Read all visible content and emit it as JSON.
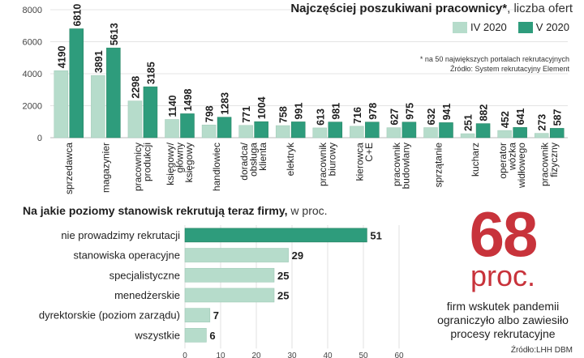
{
  "chart_data": [
    {
      "type": "bar",
      "title": "Najczęściej poszukiwani pracownicy*",
      "title_suffix": ", liczba ofert",
      "categories": [
        [
          "sprzedawca"
        ],
        [
          "magazynier"
        ],
        [
          "pracownicy",
          "produkcji"
        ],
        [
          "księgowy/",
          "główny",
          "księgowy"
        ],
        [
          "handlowiec"
        ],
        [
          "doradca/",
          "obsługa",
          "klienta"
        ],
        [
          "elektryk"
        ],
        [
          "pracownik",
          "biurowy"
        ],
        [
          "kierowca",
          "C+E"
        ],
        [
          "pracownik",
          "budowlany"
        ],
        [
          "sprzątanie"
        ],
        [
          "kucharz"
        ],
        [
          "operator",
          "wózka",
          "widłowego"
        ],
        [
          "pracownik",
          "fizyczny"
        ]
      ],
      "series": [
        {
          "name": "IV 2020",
          "color": "#b6dccb",
          "values": [
            4190,
            3891,
            2298,
            1140,
            798,
            771,
            758,
            613,
            716,
            627,
            632,
            251,
            452,
            273
          ]
        },
        {
          "name": "V 2020",
          "color": "#2e9c7c",
          "values": [
            6810,
            5613,
            3185,
            1498,
            1283,
            1004,
            991,
            981,
            978,
            975,
            941,
            882,
            641,
            587
          ]
        }
      ],
      "yticks": [
        "0",
        "2000",
        "4000",
        "6000",
        "8000"
      ],
      "ylim": [
        0,
        8000
      ],
      "notes": [
        "* na 50 największych portalach rekrutacyjnych",
        "Źródło: System rekrutacyjny Element"
      ]
    },
    {
      "type": "bar",
      "orientation": "horizontal",
      "title": "Na jakie poziomy stanowisk rekrutują teraz firmy,",
      "title_suffix": " w proc.",
      "categories": [
        "nie prowadzimy rekrutacji",
        "stanowiska operacyjne",
        "specjalistyczne",
        "menedżerskie",
        "dyrektorskie (poziom zarządu)",
        "wszystkie"
      ],
      "values": [
        51,
        29,
        25,
        25,
        7,
        6
      ],
      "highlight_color": "#2e9c7c",
      "color": "#b6dccb",
      "xticks": [
        "0",
        "10",
        "20",
        "30",
        "40",
        "50",
        "60"
      ],
      "xlim": [
        0,
        60
      ]
    }
  ],
  "highlight": {
    "number": "68",
    "unit": "proc.",
    "description": [
      "firm wskutek pandemii",
      "ograniczyło albo zawiesiło",
      "procesy rekrutacyjne"
    ]
  },
  "source2": "Źródło:LHH DBM"
}
